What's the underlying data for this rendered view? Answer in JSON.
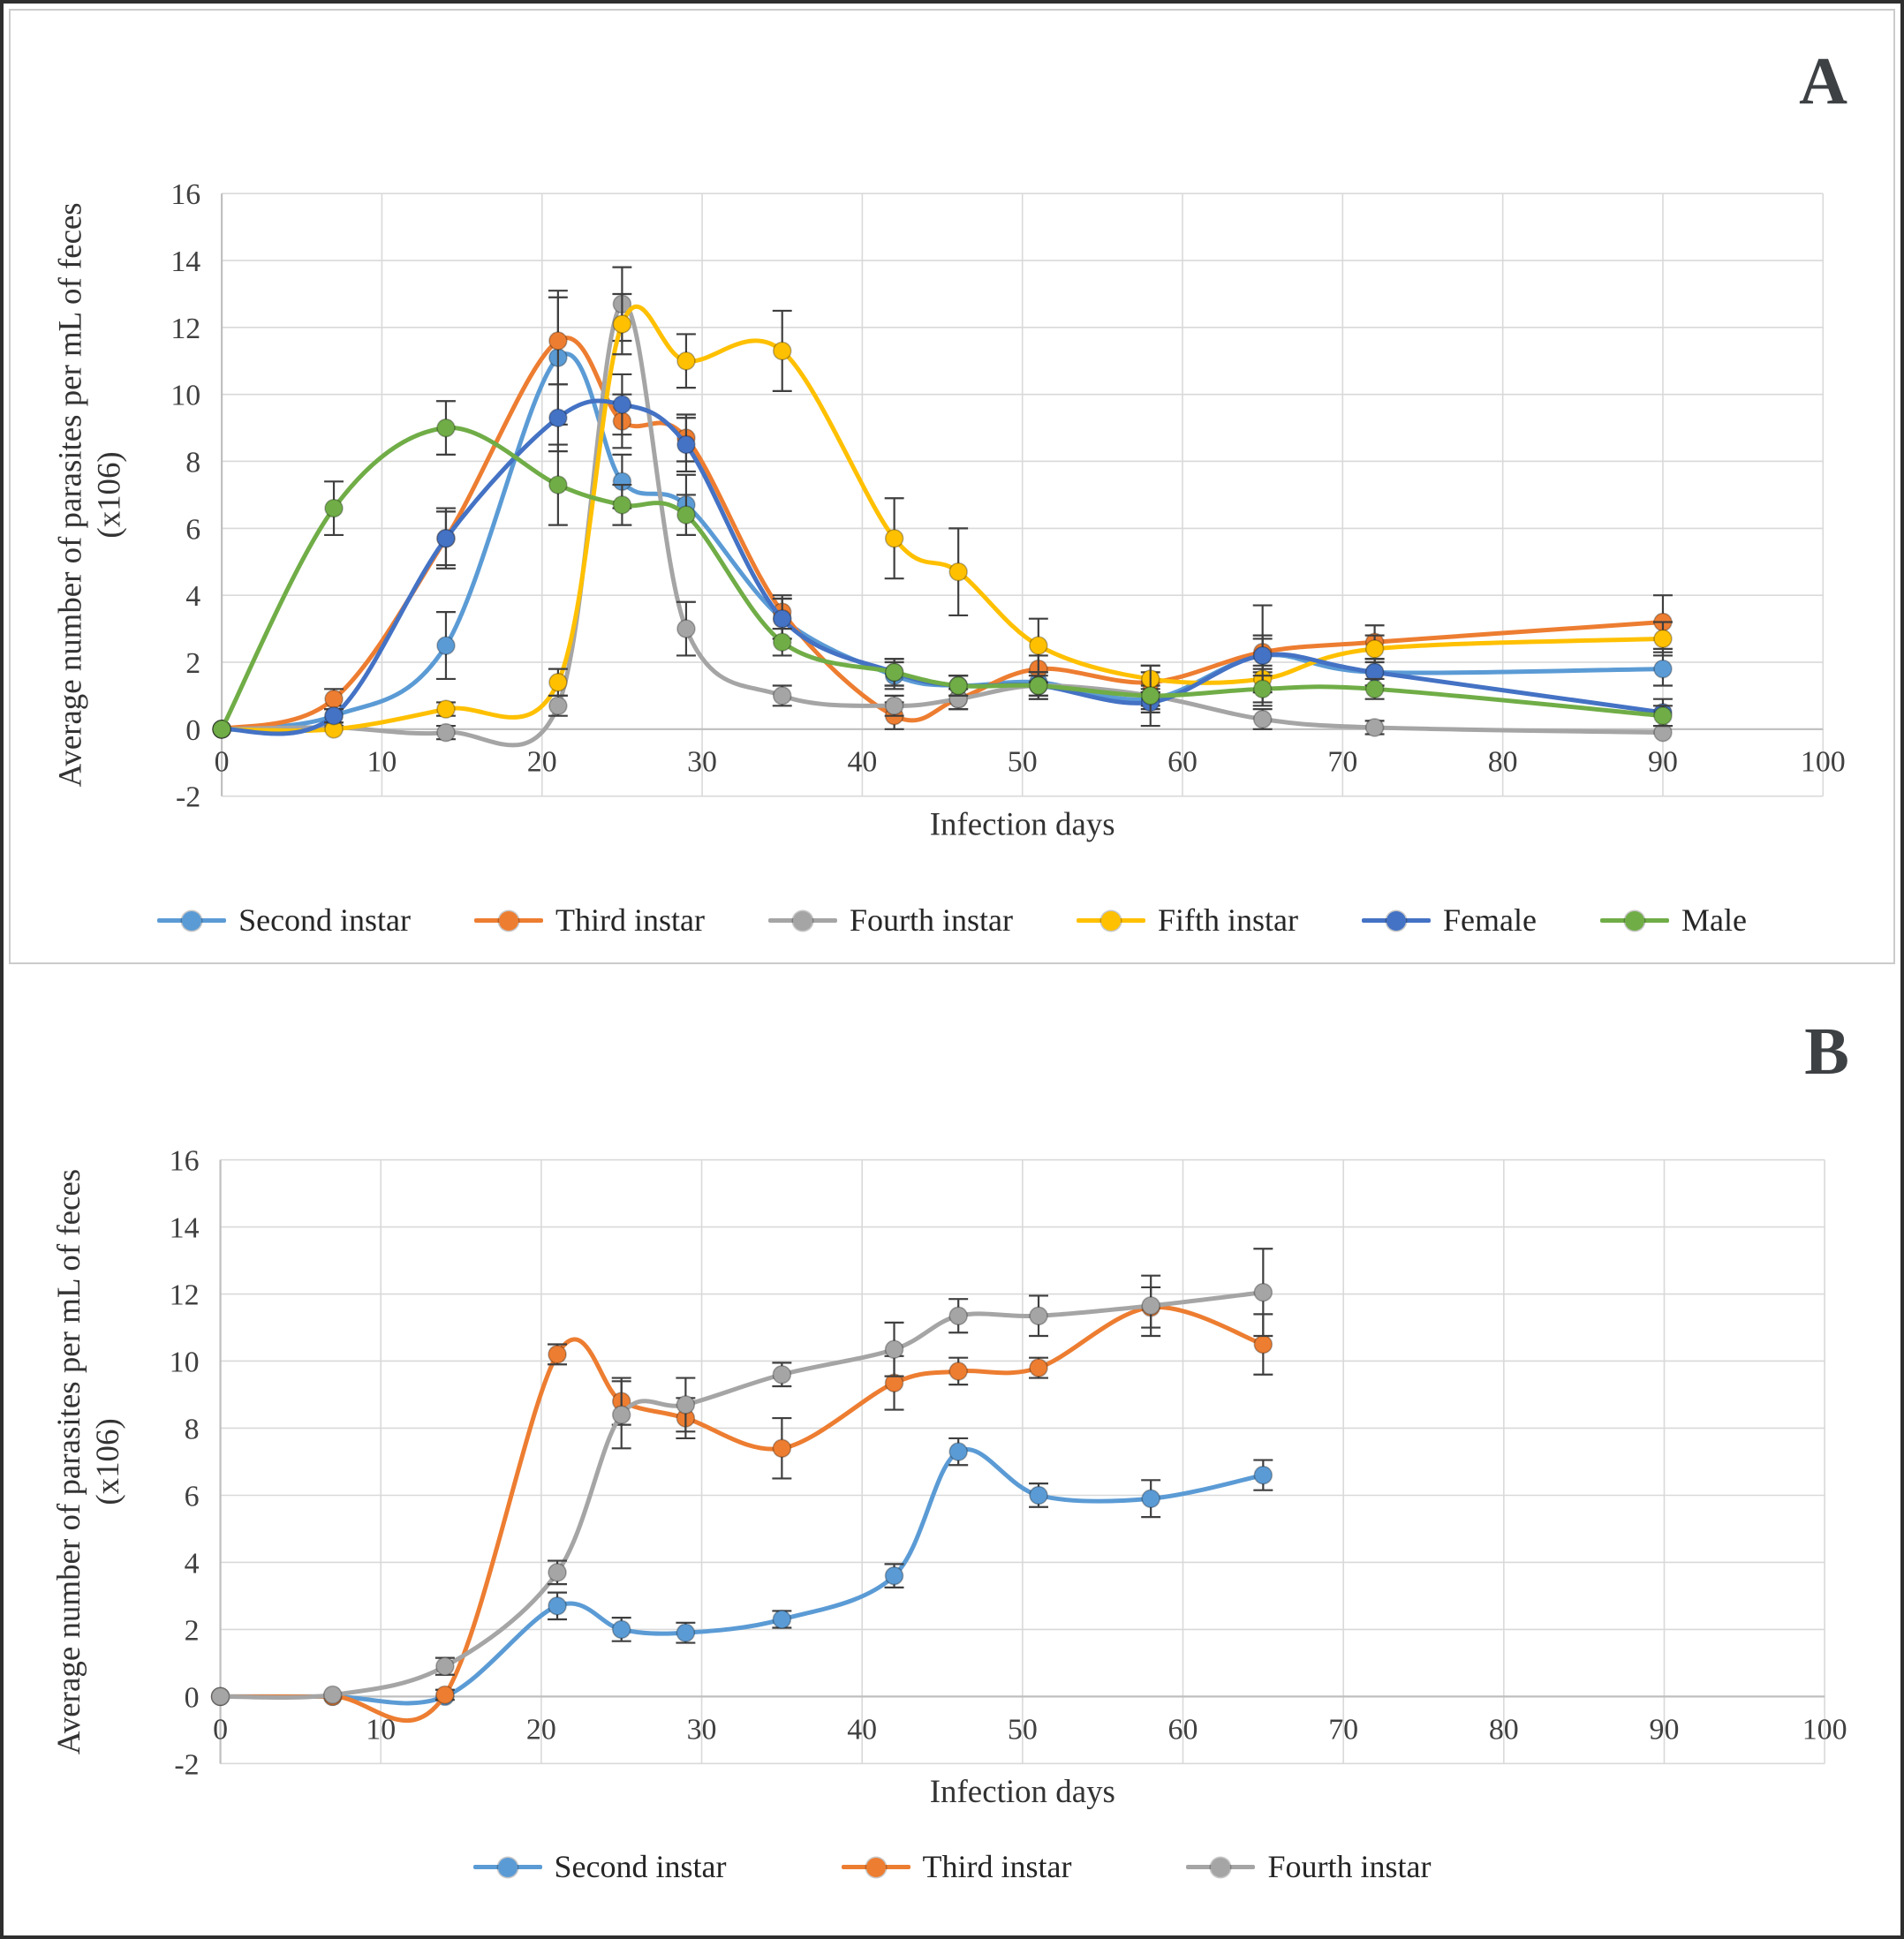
{
  "figure": {
    "background": "#ffffff",
    "outer_border_color": "#2e2e2e",
    "panel_border_color": "#cbcbcb",
    "gridline_color": "#d9d9d9",
    "axis_line_color": "#bfbfbf",
    "error_bar_color": "#3f3f3f",
    "text_color": "#404040"
  },
  "chart_data": [
    {
      "type": "line",
      "panel_label": "A",
      "xlabel": "Infection days",
      "ylabel": "Average number of parasites per mL of feces",
      "ylabel2": "(x106)",
      "xlim": [
        0,
        100
      ],
      "xstep": 10,
      "ylim": [
        -2,
        16
      ],
      "ystep": 2,
      "grid": true,
      "legend_position": "bottom",
      "x": [
        0,
        7,
        14,
        21,
        25,
        29,
        35,
        42,
        46,
        51,
        58,
        65,
        72,
        90
      ],
      "series": [
        {
          "name": "Second instar",
          "color": "#5B9BD5",
          "values": [
            0,
            0.4,
            2.5,
            11.1,
            7.4,
            6.7,
            3.3,
            1.6,
            1.3,
            1.4,
            0.9,
            2.2,
            1.7,
            1.8
          ],
          "errors": [
            0,
            0.3,
            1.0,
            2.0,
            0.8,
            0.9,
            0.6,
            0.4,
            0.3,
            0.4,
            0.3,
            0.5,
            0.4,
            0.5
          ]
        },
        {
          "name": "Third instar",
          "color": "#ED7D31",
          "values": [
            0,
            0.9,
            5.7,
            11.6,
            9.2,
            8.7,
            3.5,
            0.4,
            0.9,
            1.8,
            1.4,
            2.3,
            2.6,
            3.2
          ],
          "errors": [
            0,
            0.3,
            0.9,
            1.3,
            0.8,
            0.7,
            0.5,
            0.4,
            0.3,
            0.4,
            0.3,
            0.5,
            0.5,
            0.8
          ]
        },
        {
          "name": "Fourth instar",
          "color": "#A5A5A5",
          "values": [
            0,
            0.05,
            -0.1,
            0.7,
            12.7,
            3.0,
            1.0,
            0.7,
            0.9,
            1.3,
            1.0,
            0.3,
            0.05,
            -0.1
          ],
          "errors": [
            0,
            0,
            0.2,
            0.3,
            1.1,
            0.8,
            0.3,
            0.3,
            0.3,
            0.3,
            0.3,
            0.3,
            0.2,
            0.1
          ]
        },
        {
          "name": "Fifth instar",
          "color": "#FFC000",
          "values": [
            0,
            0,
            0.6,
            1.4,
            12.1,
            11.0,
            11.3,
            5.7,
            4.7,
            2.5,
            1.5,
            1.5,
            2.4,
            2.7
          ],
          "errors": [
            0,
            0,
            0.2,
            0.4,
            0.9,
            0.8,
            1.2,
            1.2,
            1.3,
            0.8,
            0.4,
            0.4,
            0.4,
            0.5
          ]
        },
        {
          "name": "Female",
          "color": "#4472C4",
          "values": [
            0,
            0.4,
            5.7,
            9.3,
            9.7,
            8.5,
            3.3,
            1.7,
            1.3,
            1.3,
            0.8,
            2.2,
            1.7,
            0.5
          ],
          "errors": [
            0,
            0.2,
            0.8,
            1.0,
            0.9,
            0.8,
            0.6,
            0.4,
            0.3,
            0.4,
            0.3,
            1.5,
            0.4,
            0.4
          ]
        },
        {
          "name": "Male",
          "color": "#70AD47",
          "values": [
            0,
            6.6,
            9.0,
            7.3,
            6.7,
            6.4,
            2.6,
            1.7,
            1.3,
            1.3,
            1.0,
            1.2,
            1.2,
            0.4
          ],
          "errors": [
            0,
            0.8,
            0.8,
            1.2,
            0.6,
            0.6,
            0.4,
            0.4,
            0.3,
            0.4,
            0.9,
            0.4,
            0.3,
            0.3
          ]
        }
      ]
    },
    {
      "type": "line",
      "panel_label": "B",
      "xlabel": "Infection days",
      "ylabel": "Average number of parasites per mL of feces",
      "ylabel2": "(x106)",
      "xlim": [
        0,
        100
      ],
      "xstep": 10,
      "ylim": [
        -2,
        16
      ],
      "ystep": 2,
      "grid": true,
      "legend_position": "bottom",
      "x": [
        0,
        7,
        14,
        21,
        25,
        29,
        35,
        42,
        46,
        51,
        58,
        65
      ],
      "series": [
        {
          "name": "Second instar",
          "color": "#5B9BD5",
          "values": [
            0,
            0,
            0,
            2.7,
            2.0,
            1.9,
            2.3,
            3.6,
            7.3,
            6.0,
            5.9,
            6.6
          ],
          "errors": [
            0,
            0,
            0.1,
            0.4,
            0.35,
            0.3,
            0.25,
            0.35,
            0.4,
            0.35,
            0.55,
            0.45
          ]
        },
        {
          "name": "Third instar",
          "color": "#ED7D31",
          "values": [
            0,
            0,
            0.05,
            10.2,
            8.8,
            8.3,
            7.4,
            9.35,
            9.7,
            9.8,
            11.6,
            10.5
          ],
          "errors": [
            0,
            0,
            0.15,
            0.3,
            0.7,
            0.6,
            0.9,
            0.8,
            0.4,
            0.3,
            0.6,
            0.9
          ]
        },
        {
          "name": "Fourth instar",
          "color": "#A5A5A5",
          "values": [
            0,
            0.05,
            0.9,
            3.7,
            8.4,
            8.7,
            9.6,
            10.35,
            11.35,
            11.35,
            11.65,
            12.05
          ],
          "errors": [
            0,
            0.1,
            0.25,
            0.35,
            1.0,
            0.8,
            0.35,
            0.8,
            0.5,
            0.6,
            0.9,
            1.3
          ]
        }
      ]
    }
  ]
}
